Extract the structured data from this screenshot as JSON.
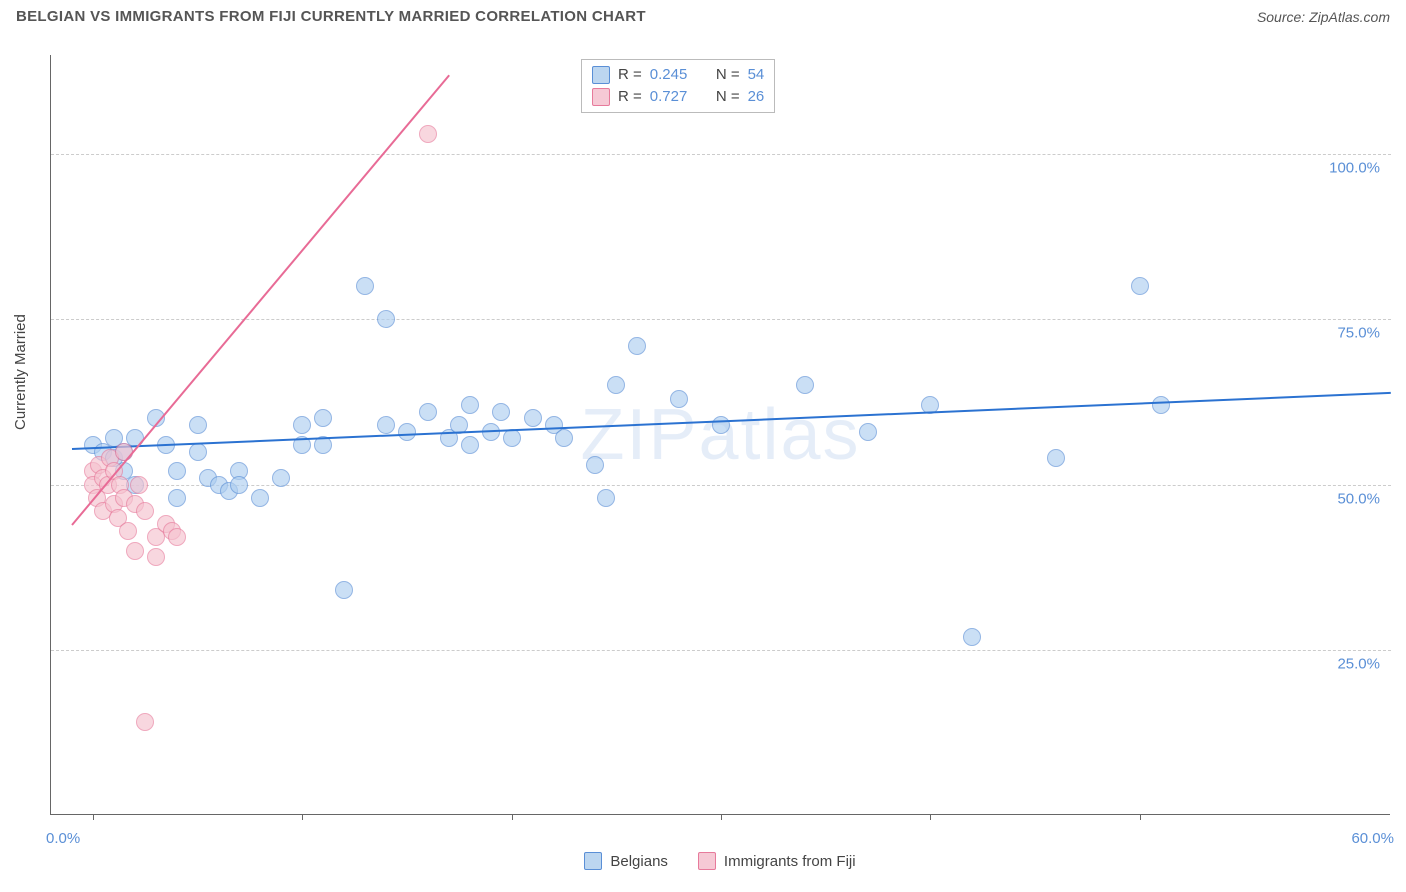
{
  "title": "BELGIAN VS IMMIGRANTS FROM FIJI CURRENTLY MARRIED CORRELATION CHART",
  "source_prefix": "Source: ",
  "source_name": "ZipAtlas.com",
  "watermark": "ZIPatlas",
  "y_axis_title": "Currently Married",
  "chart": {
    "type": "scatter",
    "background_color": "#ffffff",
    "grid_color": "#cccccc",
    "axis_color": "#666666",
    "label_color": "#5a8fd6",
    "font_size_labels": 15,
    "x_domain": [
      -2,
      62
    ],
    "y_domain": [
      0,
      115
    ],
    "x_ticks": [
      0,
      10,
      20,
      30,
      40,
      50
    ],
    "x_tick_labels": {
      "left": "0.0%",
      "right": "60.0%"
    },
    "y_gridlines": [
      25,
      50,
      75,
      100
    ],
    "y_tick_labels": [
      "25.0%",
      "50.0%",
      "75.0%",
      "100.0%"
    ],
    "series": [
      {
        "name": "Belgians",
        "color_fill": "#aecef0",
        "color_stroke": "#5a8fd6",
        "line_color": "#2b72d1",
        "marker_size": 18,
        "R": 0.245,
        "N": 54,
        "trend": {
          "x1": -1,
          "y1": 55.5,
          "x2": 62,
          "y2": 64
        },
        "points": [
          [
            0,
            56
          ],
          [
            0.5,
            55
          ],
          [
            1,
            57
          ],
          [
            1,
            54
          ],
          [
            1.5,
            55
          ],
          [
            1.5,
            52
          ],
          [
            2,
            57
          ],
          [
            2,
            50
          ],
          [
            3,
            60
          ],
          [
            3.5,
            56
          ],
          [
            4,
            52
          ],
          [
            4,
            48
          ],
          [
            5,
            59
          ],
          [
            5,
            55
          ],
          [
            5.5,
            51
          ],
          [
            6,
            50
          ],
          [
            6.5,
            49
          ],
          [
            7,
            52
          ],
          [
            7,
            50
          ],
          [
            8,
            48
          ],
          [
            9,
            51
          ],
          [
            10,
            59
          ],
          [
            10,
            56
          ],
          [
            11,
            60
          ],
          [
            11,
            56
          ],
          [
            12,
            34
          ],
          [
            13,
            80
          ],
          [
            14,
            75
          ],
          [
            14,
            59
          ],
          [
            15,
            58
          ],
          [
            16,
            61
          ],
          [
            17,
            57
          ],
          [
            17.5,
            59
          ],
          [
            18,
            56
          ],
          [
            18,
            62
          ],
          [
            19,
            58
          ],
          [
            19.5,
            61
          ],
          [
            20,
            57
          ],
          [
            21,
            60
          ],
          [
            22,
            59
          ],
          [
            22.5,
            57
          ],
          [
            24,
            53
          ],
          [
            24.5,
            48
          ],
          [
            25,
            65
          ],
          [
            26,
            71
          ],
          [
            28,
            63
          ],
          [
            30,
            59
          ],
          [
            34,
            65
          ],
          [
            37,
            58
          ],
          [
            40,
            62
          ],
          [
            42,
            27
          ],
          [
            46,
            54
          ],
          [
            50,
            80
          ],
          [
            51,
            62
          ]
        ]
      },
      {
        "name": "Immigrants from Fiji",
        "color_fill": "#f5c2cf",
        "color_stroke": "#e77a9b",
        "line_color": "#e86b96",
        "marker_size": 18,
        "R": 0.727,
        "N": 26,
        "trend": {
          "x1": -1,
          "y1": 44,
          "x2": 17,
          "y2": 112
        },
        "points": [
          [
            0,
            52
          ],
          [
            0,
            50
          ],
          [
            0.2,
            48
          ],
          [
            0.3,
            53
          ],
          [
            0.5,
            51
          ],
          [
            0.5,
            46
          ],
          [
            0.7,
            50
          ],
          [
            0.8,
            54
          ],
          [
            1,
            47
          ],
          [
            1,
            52
          ],
          [
            1.2,
            45
          ],
          [
            1.3,
            50
          ],
          [
            1.5,
            55
          ],
          [
            1.5,
            48
          ],
          [
            1.7,
            43
          ],
          [
            2,
            40
          ],
          [
            2,
            47
          ],
          [
            2.2,
            50
          ],
          [
            2.5,
            46
          ],
          [
            2.5,
            14
          ],
          [
            3,
            42
          ],
          [
            3,
            39
          ],
          [
            3.5,
            44
          ],
          [
            3.8,
            43
          ],
          [
            4,
            42
          ],
          [
            16,
            103
          ]
        ]
      }
    ],
    "legend_r_label": "R =",
    "legend_n_label": "N ="
  }
}
